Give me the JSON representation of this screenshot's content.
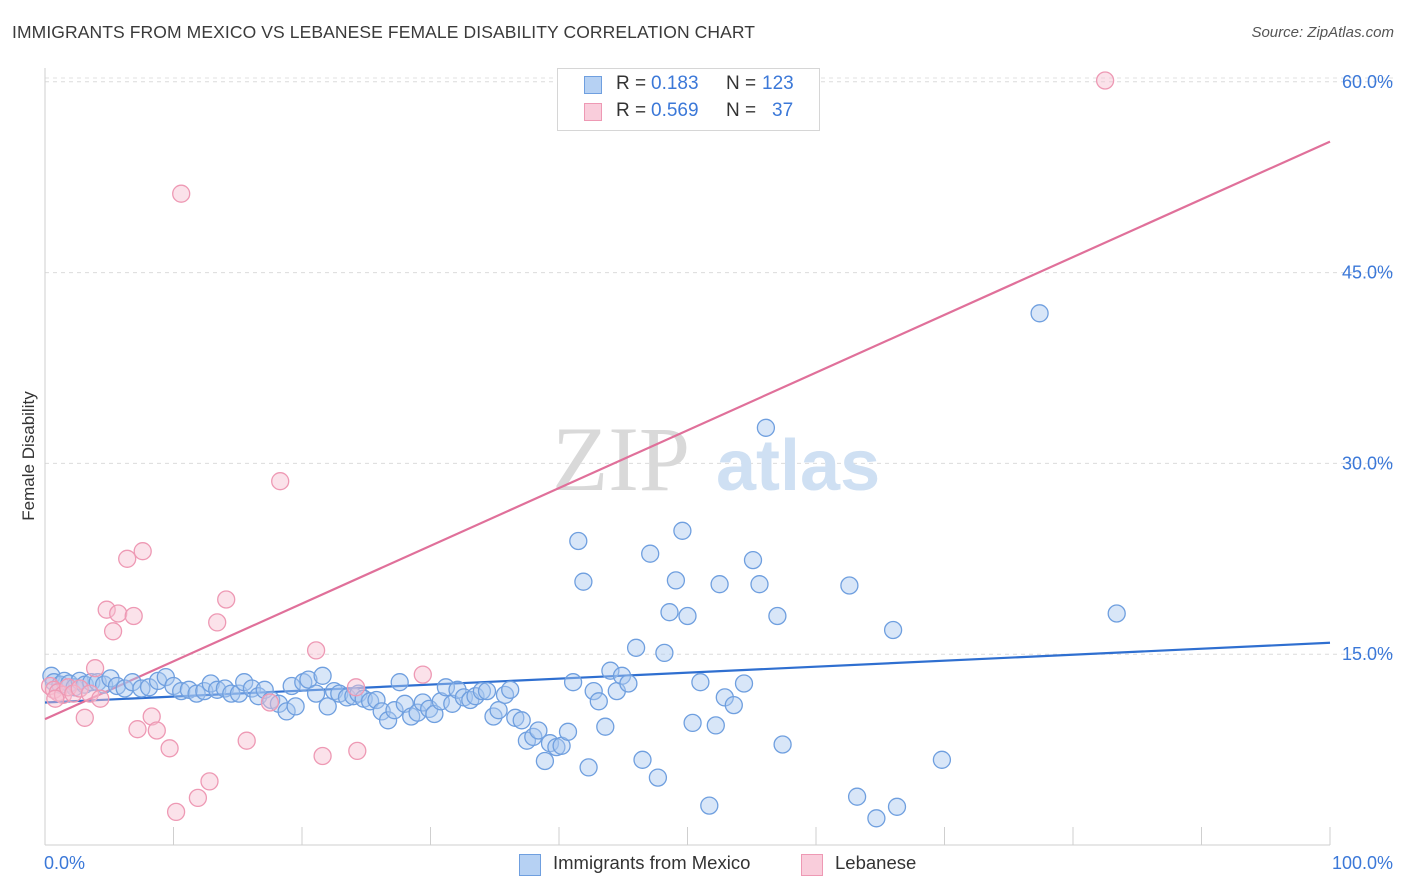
{
  "header": {
    "title": "IMMIGRANTS FROM MEXICO VS LEBANESE FEMALE DISABILITY CORRELATION CHART",
    "source": "Source: ZipAtlas.com"
  },
  "stats": {
    "r_label": "R =",
    "n_label": "N =",
    "series1": {
      "r": "0.183",
      "n": "123"
    },
    "series2": {
      "r": "0.569",
      "n": "37"
    }
  },
  "colors": {
    "blue_fill": "#a8c8f0",
    "blue_stroke": "#6f9fdf",
    "blue_line": "#2f6fd0",
    "pink_fill": "#f6bfd0",
    "pink_stroke": "#ee99b4",
    "pink_line": "#e0709a",
    "tick_text": "#3b78d8"
  },
  "chart_data": {
    "type": "scatter",
    "title": "IMMIGRANTS FROM MEXICO VS LEBANESE FEMALE DISABILITY CORRELATION CHART",
    "xlabel": "",
    "ylabel": "Female Disability",
    "xlim": [
      0,
      100
    ],
    "ylim": [
      0,
      60
    ],
    "x_tick_labels": [
      "0.0%",
      "100.0%"
    ],
    "y_ticks": [
      15,
      30,
      45,
      60
    ],
    "y_tick_labels": [
      "15.0%",
      "30.0%",
      "45.0%",
      "60.0%"
    ],
    "watermark": [
      "ZIP",
      "atlas"
    ],
    "series": [
      {
        "name": "Immigrants from Mexico",
        "color": "#6f9fdf",
        "trend": {
          "x": [
            0,
            100
          ],
          "y": [
            11.2,
            15.9
          ]
        },
        "points": [
          [
            0.5,
            13.3
          ],
          [
            0.7,
            12.8
          ],
          [
            1.2,
            12.6
          ],
          [
            1.5,
            12.9
          ],
          [
            1.9,
            12.7
          ],
          [
            2.3,
            12.4
          ],
          [
            2.7,
            12.9
          ],
          [
            3.1,
            12.6
          ],
          [
            3.6,
            12.8
          ],
          [
            4.1,
            12.8
          ],
          [
            4.6,
            12.6
          ],
          [
            5.1,
            13.1
          ],
          [
            5.6,
            12.5
          ],
          [
            6.2,
            12.3
          ],
          [
            6.8,
            12.8
          ],
          [
            7.5,
            12.3
          ],
          [
            8.1,
            12.4
          ],
          [
            8.8,
            12.9
          ],
          [
            9.4,
            13.2
          ],
          [
            10.0,
            12.5
          ],
          [
            10.6,
            12.1
          ],
          [
            11.2,
            12.2
          ],
          [
            11.8,
            11.9
          ],
          [
            12.4,
            12.1
          ],
          [
            12.9,
            12.7
          ],
          [
            13.4,
            12.2
          ],
          [
            14.0,
            12.3
          ],
          [
            14.5,
            11.9
          ],
          [
            15.1,
            11.9
          ],
          [
            15.5,
            12.8
          ],
          [
            16.1,
            12.3
          ],
          [
            16.6,
            11.7
          ],
          [
            17.1,
            12.2
          ],
          [
            17.6,
            11.4
          ],
          [
            18.2,
            11.1
          ],
          [
            18.8,
            10.5
          ],
          [
            19.2,
            12.5
          ],
          [
            19.5,
            10.9
          ],
          [
            20.1,
            12.8
          ],
          [
            20.5,
            13.0
          ],
          [
            21.1,
            11.9
          ],
          [
            21.6,
            13.3
          ],
          [
            22.0,
            10.9
          ],
          [
            22.5,
            12.1
          ],
          [
            22.9,
            11.9
          ],
          [
            23.5,
            11.6
          ],
          [
            24.0,
            11.7
          ],
          [
            24.4,
            11.9
          ],
          [
            24.8,
            11.5
          ],
          [
            25.3,
            11.3
          ],
          [
            25.8,
            11.4
          ],
          [
            26.2,
            10.5
          ],
          [
            26.7,
            9.8
          ],
          [
            27.2,
            10.6
          ],
          [
            27.6,
            12.8
          ],
          [
            28.0,
            11.1
          ],
          [
            28.5,
            10.1
          ],
          [
            29.0,
            10.4
          ],
          [
            29.4,
            11.2
          ],
          [
            29.9,
            10.7
          ],
          [
            30.3,
            10.3
          ],
          [
            30.8,
            11.3
          ],
          [
            31.2,
            12.4
          ],
          [
            31.7,
            11.1
          ],
          [
            32.1,
            12.2
          ],
          [
            32.6,
            11.6
          ],
          [
            33.1,
            11.4
          ],
          [
            33.5,
            11.7
          ],
          [
            34.0,
            12.1
          ],
          [
            34.4,
            12.1
          ],
          [
            34.9,
            10.1
          ],
          [
            35.3,
            10.6
          ],
          [
            35.8,
            11.8
          ],
          [
            36.2,
            12.2
          ],
          [
            36.6,
            10.0
          ],
          [
            37.1,
            9.8
          ],
          [
            37.5,
            8.2
          ],
          [
            38.0,
            8.5
          ],
          [
            38.4,
            9.0
          ],
          [
            38.9,
            6.6
          ],
          [
            39.3,
            8.0
          ],
          [
            39.8,
            7.7
          ],
          [
            40.2,
            7.8
          ],
          [
            40.7,
            8.9
          ],
          [
            41.1,
            12.8
          ],
          [
            41.5,
            23.9
          ],
          [
            41.9,
            20.7
          ],
          [
            42.3,
            6.1
          ],
          [
            42.7,
            12.1
          ],
          [
            43.1,
            11.3
          ],
          [
            43.6,
            9.3
          ],
          [
            44.0,
            13.7
          ],
          [
            44.5,
            12.1
          ],
          [
            44.9,
            13.3
          ],
          [
            45.4,
            12.7
          ],
          [
            46.0,
            15.5
          ],
          [
            46.5,
            6.7
          ],
          [
            47.1,
            22.9
          ],
          [
            47.7,
            5.3
          ],
          [
            48.2,
            15.1
          ],
          [
            48.6,
            18.3
          ],
          [
            49.1,
            20.8
          ],
          [
            49.6,
            24.7
          ],
          [
            50.0,
            18.0
          ],
          [
            50.4,
            9.6
          ],
          [
            51.0,
            12.8
          ],
          [
            51.7,
            3.1
          ],
          [
            52.2,
            9.4
          ],
          [
            52.5,
            20.5
          ],
          [
            52.9,
            11.6
          ],
          [
            53.6,
            11.0
          ],
          [
            54.4,
            12.7
          ],
          [
            55.1,
            22.4
          ],
          [
            55.6,
            20.5
          ],
          [
            56.1,
            32.8
          ],
          [
            57.0,
            18.0
          ],
          [
            57.4,
            7.9
          ],
          [
            62.6,
            20.4
          ],
          [
            63.2,
            3.8
          ],
          [
            64.7,
            2.1
          ],
          [
            66.0,
            16.9
          ],
          [
            66.3,
            3.0
          ],
          [
            69.8,
            6.7
          ],
          [
            77.4,
            41.8
          ],
          [
            83.4,
            18.2
          ]
        ]
      },
      {
        "name": "Lebanese",
        "color": "#ee99b4",
        "trend": {
          "x": [
            0,
            100
          ],
          "y": [
            9.9,
            55.3
          ]
        },
        "points": [
          [
            0.4,
            12.5
          ],
          [
            0.7,
            12.2
          ],
          [
            1.0,
            12.0
          ],
          [
            1.4,
            11.8
          ],
          [
            1.8,
            12.4
          ],
          [
            2.2,
            11.9
          ],
          [
            2.7,
            12.3
          ],
          [
            3.1,
            10.0
          ],
          [
            3.5,
            11.9
          ],
          [
            3.9,
            13.9
          ],
          [
            4.3,
            11.5
          ],
          [
            4.8,
            18.5
          ],
          [
            5.3,
            16.8
          ],
          [
            5.7,
            18.2
          ],
          [
            6.4,
            22.5
          ],
          [
            6.9,
            18.0
          ],
          [
            7.2,
            9.1
          ],
          [
            7.6,
            23.1
          ],
          [
            8.3,
            10.1
          ],
          [
            8.7,
            9.0
          ],
          [
            9.7,
            7.6
          ],
          [
            10.2,
            2.6
          ],
          [
            10.6,
            51.2
          ],
          [
            11.9,
            3.7
          ],
          [
            12.8,
            5.0
          ],
          [
            13.4,
            17.5
          ],
          [
            14.1,
            19.3
          ],
          [
            15.7,
            8.2
          ],
          [
            17.5,
            11.2
          ],
          [
            18.3,
            28.6
          ],
          [
            21.1,
            15.3
          ],
          [
            21.6,
            7.0
          ],
          [
            24.2,
            12.4
          ],
          [
            24.3,
            7.4
          ],
          [
            29.4,
            13.4
          ],
          [
            82.5,
            60.1
          ],
          [
            0.8,
            11.5
          ]
        ]
      }
    ]
  },
  "legend": {
    "items": [
      "Immigrants from Mexico",
      "Lebanese"
    ]
  }
}
